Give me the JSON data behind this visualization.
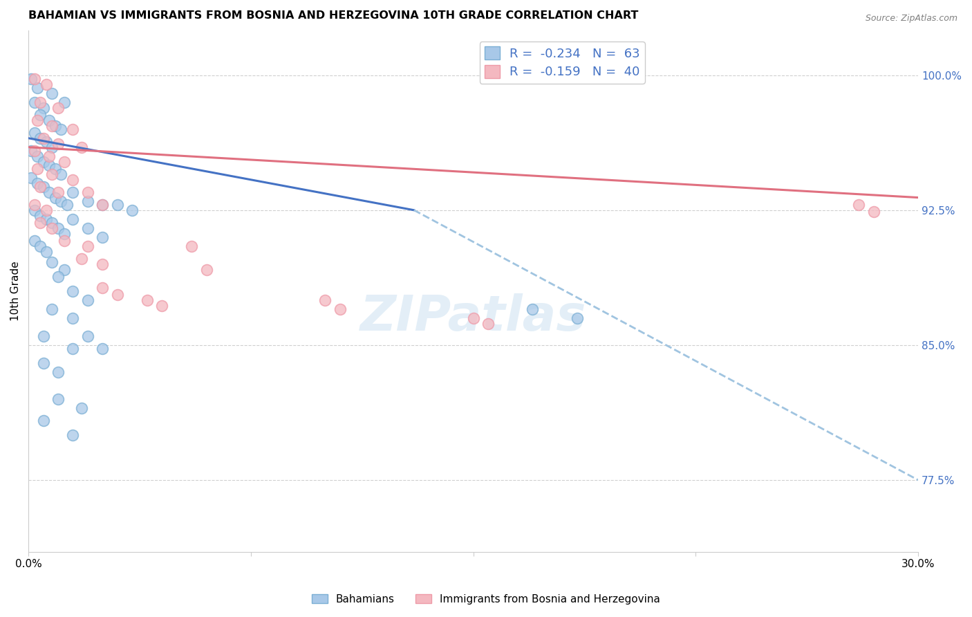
{
  "title": "BAHAMIAN VS IMMIGRANTS FROM BOSNIA AND HERZEGOVINA 10TH GRADE CORRELATION CHART",
  "source": "Source: ZipAtlas.com",
  "ylabel": "10th Grade",
  "ytick_labels": [
    "77.5%",
    "85.0%",
    "92.5%",
    "100.0%"
  ],
  "ytick_values": [
    0.775,
    0.85,
    0.925,
    1.0
  ],
  "xlim": [
    0.0,
    0.3
  ],
  "ylim": [
    0.735,
    1.025
  ],
  "legend_r_blue": "-0.234",
  "legend_n_blue": "63",
  "legend_r_pink": "-0.159",
  "legend_n_pink": "40",
  "color_blue_fill": "#A8C8E8",
  "color_pink_fill": "#F4B8C0",
  "color_blue_edge": "#7BAFD4",
  "color_pink_edge": "#EE9AA8",
  "color_blue_line": "#4472C4",
  "color_pink_line": "#E07080",
  "color_blue_dashed": "#A0C4E0",
  "color_legend_text": "#4472C4",
  "watermark_color": "#C8DFF0",
  "blue_scatter": [
    [
      0.001,
      0.998
    ],
    [
      0.003,
      0.993
    ],
    [
      0.008,
      0.99
    ],
    [
      0.002,
      0.985
    ],
    [
      0.005,
      0.982
    ],
    [
      0.012,
      0.985
    ],
    [
      0.004,
      0.978
    ],
    [
      0.007,
      0.975
    ],
    [
      0.009,
      0.972
    ],
    [
      0.011,
      0.97
    ],
    [
      0.002,
      0.968
    ],
    [
      0.004,
      0.965
    ],
    [
      0.006,
      0.963
    ],
    [
      0.008,
      0.96
    ],
    [
      0.001,
      0.958
    ],
    [
      0.003,
      0.955
    ],
    [
      0.005,
      0.952
    ],
    [
      0.007,
      0.95
    ],
    [
      0.009,
      0.948
    ],
    [
      0.011,
      0.945
    ],
    [
      0.001,
      0.943
    ],
    [
      0.003,
      0.94
    ],
    [
      0.005,
      0.938
    ],
    [
      0.007,
      0.935
    ],
    [
      0.009,
      0.932
    ],
    [
      0.011,
      0.93
    ],
    [
      0.013,
      0.928
    ],
    [
      0.002,
      0.925
    ],
    [
      0.004,
      0.922
    ],
    [
      0.006,
      0.92
    ],
    [
      0.008,
      0.918
    ],
    [
      0.01,
      0.915
    ],
    [
      0.012,
      0.912
    ],
    [
      0.002,
      0.908
    ],
    [
      0.004,
      0.905
    ],
    [
      0.006,
      0.902
    ],
    [
      0.015,
      0.935
    ],
    [
      0.02,
      0.93
    ],
    [
      0.025,
      0.928
    ],
    [
      0.015,
      0.92
    ],
    [
      0.02,
      0.915
    ],
    [
      0.025,
      0.91
    ],
    [
      0.03,
      0.928
    ],
    [
      0.035,
      0.925
    ],
    [
      0.008,
      0.896
    ],
    [
      0.012,
      0.892
    ],
    [
      0.01,
      0.888
    ],
    [
      0.015,
      0.88
    ],
    [
      0.02,
      0.875
    ],
    [
      0.008,
      0.87
    ],
    [
      0.015,
      0.865
    ],
    [
      0.005,
      0.855
    ],
    [
      0.015,
      0.848
    ],
    [
      0.005,
      0.84
    ],
    [
      0.01,
      0.835
    ],
    [
      0.02,
      0.855
    ],
    [
      0.025,
      0.848
    ],
    [
      0.01,
      0.82
    ],
    [
      0.018,
      0.815
    ],
    [
      0.005,
      0.808
    ],
    [
      0.015,
      0.8
    ],
    [
      0.17,
      0.87
    ],
    [
      0.185,
      0.865
    ]
  ],
  "pink_scatter": [
    [
      0.002,
      0.998
    ],
    [
      0.006,
      0.995
    ],
    [
      0.004,
      0.985
    ],
    [
      0.01,
      0.982
    ],
    [
      0.003,
      0.975
    ],
    [
      0.008,
      0.972
    ],
    [
      0.015,
      0.97
    ],
    [
      0.005,
      0.965
    ],
    [
      0.01,
      0.962
    ],
    [
      0.018,
      0.96
    ],
    [
      0.002,
      0.958
    ],
    [
      0.007,
      0.955
    ],
    [
      0.012,
      0.952
    ],
    [
      0.003,
      0.948
    ],
    [
      0.008,
      0.945
    ],
    [
      0.015,
      0.942
    ],
    [
      0.004,
      0.938
    ],
    [
      0.01,
      0.935
    ],
    [
      0.02,
      0.935
    ],
    [
      0.002,
      0.928
    ],
    [
      0.006,
      0.925
    ],
    [
      0.025,
      0.928
    ],
    [
      0.004,
      0.918
    ],
    [
      0.008,
      0.915
    ],
    [
      0.012,
      0.908
    ],
    [
      0.02,
      0.905
    ],
    [
      0.018,
      0.898
    ],
    [
      0.025,
      0.895
    ],
    [
      0.025,
      0.882
    ],
    [
      0.03,
      0.878
    ],
    [
      0.04,
      0.875
    ],
    [
      0.045,
      0.872
    ],
    [
      0.055,
      0.905
    ],
    [
      0.06,
      0.892
    ],
    [
      0.1,
      0.875
    ],
    [
      0.105,
      0.87
    ],
    [
      0.15,
      0.865
    ],
    [
      0.155,
      0.862
    ],
    [
      0.28,
      0.928
    ],
    [
      0.285,
      0.924
    ]
  ],
  "blue_trendline_solid": [
    [
      0.0,
      0.965
    ],
    [
      0.13,
      0.925
    ]
  ],
  "blue_trendline_dashed": [
    [
      0.13,
      0.925
    ],
    [
      0.3,
      0.775
    ]
  ],
  "pink_trendline": [
    [
      0.0,
      0.96
    ],
    [
      0.3,
      0.932
    ]
  ]
}
